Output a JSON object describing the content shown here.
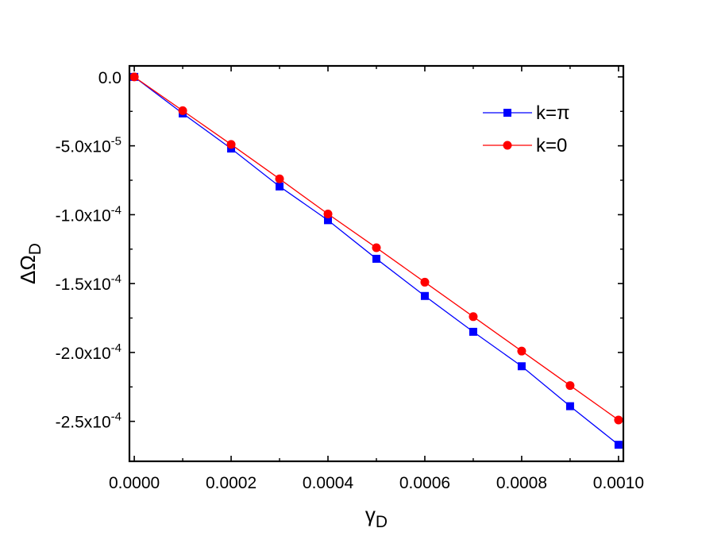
{
  "chart_data": {
    "type": "line",
    "xlabel": {
      "main": "γ",
      "sub": "D"
    },
    "ylabel": {
      "main": "ΔΩ",
      "sub": "D"
    },
    "xlim": [
      -1e-05,
      0.00101
    ],
    "ylim": [
      -0.000279,
      8e-06
    ],
    "grid": false,
    "legend_position": "top-right",
    "x_ticks": [
      {
        "value": 0.0,
        "label": "0.0000"
      },
      {
        "value": 0.0002,
        "label": "0.0002"
      },
      {
        "value": 0.0004,
        "label": "0.0004"
      },
      {
        "value": 0.0006,
        "label": "0.0006"
      },
      {
        "value": 0.0008,
        "label": "0.0008"
      },
      {
        "value": 0.001,
        "label": "0.0010"
      }
    ],
    "y_ticks": [
      {
        "value": 0.0,
        "mantissa": "0.0",
        "exponent": ""
      },
      {
        "value": -5e-05,
        "mantissa": "-5.0x10",
        "exponent": "-5"
      },
      {
        "value": -0.0001,
        "mantissa": "-1.0x10",
        "exponent": "-4"
      },
      {
        "value": -0.00015,
        "mantissa": "-1.5x10",
        "exponent": "-4"
      },
      {
        "value": -0.0002,
        "mantissa": "-2.0x10",
        "exponent": "-4"
      },
      {
        "value": -0.00025,
        "mantissa": "-2.5x10",
        "exponent": "-4"
      }
    ],
    "series": [
      {
        "name": "k=π",
        "color": "#0000ff",
        "marker": "square",
        "x": [
          0.0,
          0.0001,
          0.0002,
          0.0003,
          0.0004,
          0.0005,
          0.0006,
          0.0007,
          0.0008,
          0.0009,
          0.001
        ],
        "y": [
          0.0,
          -2.65e-05,
          -5.2e-05,
          -7.95e-05,
          -0.000104,
          -0.000132,
          -0.000159,
          -0.000185,
          -0.00021,
          -0.000239,
          -0.000267
        ]
      },
      {
        "name": "k=0",
        "color": "#ff0000",
        "marker": "circle",
        "x": [
          0.0,
          0.0001,
          0.0002,
          0.0003,
          0.0004,
          0.0005,
          0.0006,
          0.0007,
          0.0008,
          0.0009,
          0.001
        ],
        "y": [
          0.0,
          -2.45e-05,
          -4.9e-05,
          -7.4e-05,
          -9.95e-05,
          -0.000124,
          -0.000149,
          -0.000174,
          -0.000199,
          -0.000224,
          -0.000249
        ]
      }
    ]
  }
}
